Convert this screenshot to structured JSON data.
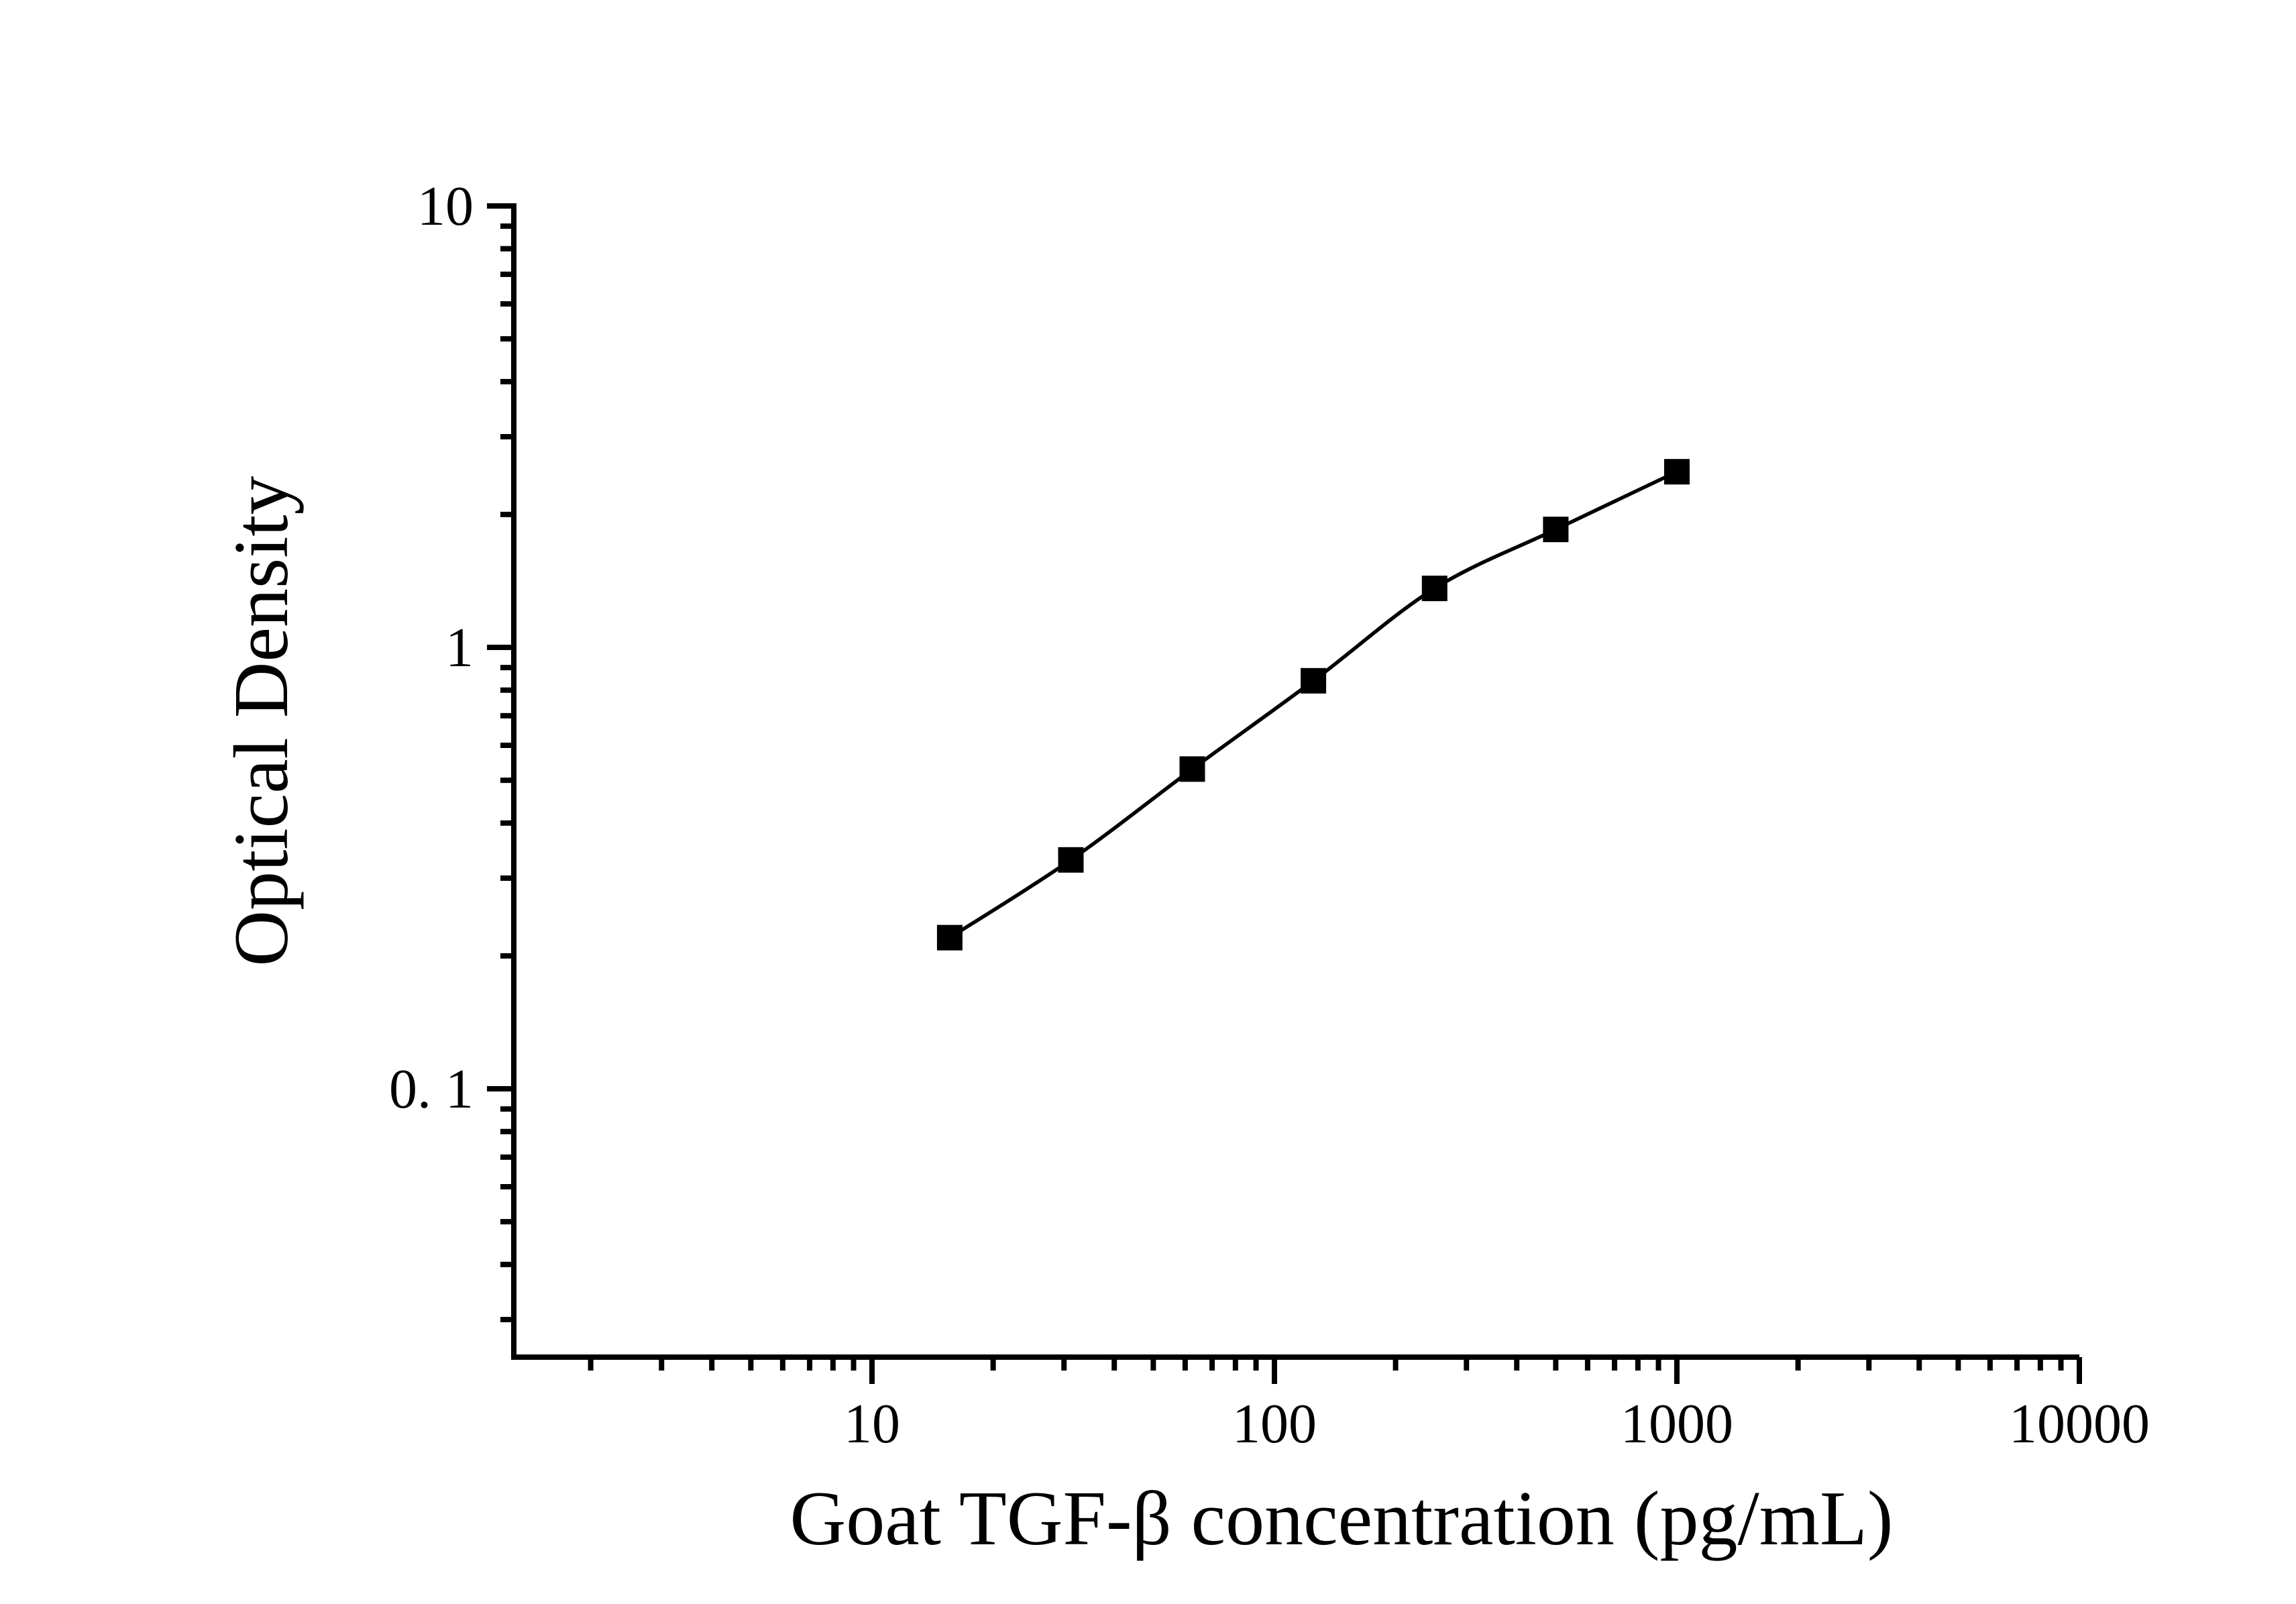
{
  "figure": {
    "background_color": "#ffffff",
    "ink_color": "#000000"
  },
  "chart_data": {
    "type": "line",
    "title": "",
    "xlabel": "Goat TGF-β concentration (pg/mL)",
    "ylabel": "Optical Density",
    "x_scale": "log10",
    "y_scale": "log10",
    "xlim": [
      1.2,
      10000
    ],
    "ylim": [
      0.025,
      10
    ],
    "grid": false,
    "legend": "none",
    "x_major_ticks": {
      "values": [
        10,
        100,
        1000,
        10000
      ],
      "labels": [
        "10",
        "100",
        "1000",
        "10000"
      ]
    },
    "y_major_ticks": {
      "values": [
        10,
        1,
        0.1
      ],
      "labels": [
        "10",
        "1",
        "0. 1"
      ]
    },
    "minor_tick_mantissas": [
      2,
      3,
      4,
      5,
      6,
      7,
      8,
      9
    ],
    "series": [
      {
        "name": "standard_curve",
        "marker": "filled-black-square",
        "line_style": "smooth-solid-black",
        "points": [
          {
            "x": 15.6,
            "y": 0.22
          },
          {
            "x": 31.2,
            "y": 0.33
          },
          {
            "x": 62.5,
            "y": 0.53
          },
          {
            "x": 125,
            "y": 0.84
          },
          {
            "x": 250,
            "y": 1.36
          },
          {
            "x": 500,
            "y": 1.85
          },
          {
            "x": 1000,
            "y": 2.5
          }
        ]
      }
    ]
  }
}
